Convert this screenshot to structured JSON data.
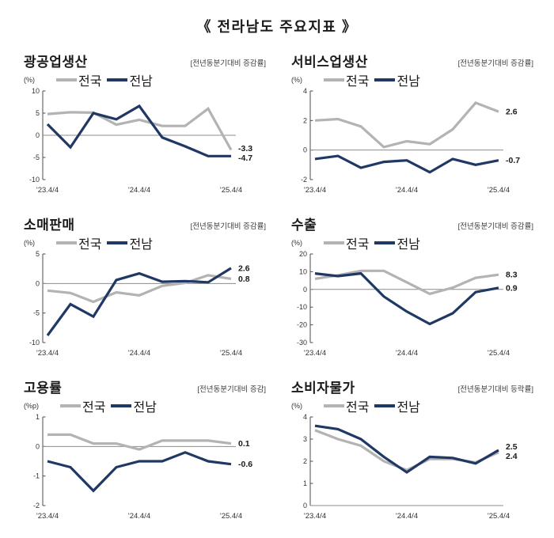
{
  "page_title": "《  전라남도 주요지표  》",
  "colors": {
    "national": "#b3b3b3",
    "jeonnam": "#1f3864",
    "axis": "#4d4d4d",
    "zero_line": "#8c8c8c",
    "tick_label": "#333333",
    "end_label": "#1a1a1a"
  },
  "legend": {
    "national_label": "전국",
    "jeonnam_label": "전남"
  },
  "chart_data": [
    {
      "type": "line",
      "title": "광공업생산",
      "subtitle": "[전년동분기대비  증감률]",
      "unit": "(%)",
      "points": 9,
      "x_tick_labels": [
        "'23.4/4",
        "'24.4/4",
        "'25.4/4"
      ],
      "x_tick_indices": [
        0,
        4,
        8
      ],
      "ylim": [
        -10,
        10
      ],
      "yticks": [
        10,
        5,
        0,
        -5,
        -10
      ],
      "series": [
        {
          "name": "전국",
          "color_key": "national",
          "values": [
            4.8,
            5.2,
            5.1,
            2.4,
            3.5,
            2.1,
            2.1,
            6.0,
            -3.3
          ],
          "end_label": "-3.3"
        },
        {
          "name": "전남",
          "color_key": "jeonnam",
          "values": [
            2.5,
            -2.7,
            5.0,
            3.6,
            6.6,
            -0.5,
            -2.5,
            -4.7,
            -4.7
          ],
          "end_label": "-4.7"
        }
      ]
    },
    {
      "type": "line",
      "title": "서비스업생산",
      "subtitle": "[전년동분기대비  증감률]",
      "unit": "(%)",
      "points": 9,
      "x_tick_labels": [
        "'23.4/4",
        "'24.4/4",
        "'25.4/4"
      ],
      "x_tick_indices": [
        0,
        4,
        8
      ],
      "ylim": [
        -2,
        4
      ],
      "yticks": [
        4,
        2,
        0,
        -2
      ],
      "series": [
        {
          "name": "전국",
          "color_key": "national",
          "values": [
            2.0,
            2.1,
            1.6,
            0.2,
            0.6,
            0.4,
            1.4,
            3.2,
            2.6
          ],
          "end_label": "2.6"
        },
        {
          "name": "전남",
          "color_key": "jeonnam",
          "values": [
            -0.6,
            -0.4,
            -1.2,
            -0.8,
            -0.7,
            -1.5,
            -0.6,
            -1.0,
            -0.7
          ],
          "end_label": "-0.7"
        }
      ]
    },
    {
      "type": "line",
      "title": "소매판매",
      "subtitle": "[전년동분기대비  증감률]",
      "unit": "(%)",
      "points": 9,
      "x_tick_labels": [
        "'23.4/4",
        "'24.4/4",
        "'25.4/4"
      ],
      "x_tick_indices": [
        0,
        4,
        8
      ],
      "ylim": [
        -10,
        5
      ],
      "yticks": [
        5,
        0,
        -5,
        -10
      ],
      "series": [
        {
          "name": "전국",
          "color_key": "national",
          "values": [
            -1.2,
            -1.6,
            -3.1,
            -1.5,
            -2.0,
            -0.4,
            0.1,
            1.4,
            0.8
          ],
          "end_label": "0.8"
        },
        {
          "name": "전남",
          "color_key": "jeonnam",
          "values": [
            -8.8,
            -3.5,
            -5.6,
            0.6,
            1.7,
            0.3,
            0.4,
            0.2,
            2.6
          ],
          "end_label": "2.6"
        }
      ]
    },
    {
      "type": "line",
      "title": "수출",
      "subtitle": "[전년동분기대비  증감률]",
      "unit": "(%)",
      "points": 9,
      "x_tick_labels": [
        "'23.4/4",
        "'24.4/4",
        "'25.4/4"
      ],
      "x_tick_indices": [
        0,
        4,
        8
      ],
      "ylim": [
        -30,
        20
      ],
      "yticks": [
        20,
        10,
        0,
        -10,
        -20,
        -30
      ],
      "series": [
        {
          "name": "전국",
          "color_key": "national",
          "values": [
            6.0,
            8.0,
            10.5,
            10.5,
            4.0,
            -2.5,
            1.0,
            6.5,
            8.3
          ],
          "end_label": "8.3"
        },
        {
          "name": "전남",
          "color_key": "jeonnam",
          "values": [
            9.0,
            7.5,
            9.0,
            -4.0,
            -12.5,
            -19.5,
            -13.5,
            -1.5,
            0.9
          ],
          "end_label": "0.9"
        }
      ]
    },
    {
      "type": "line",
      "title": "고용률",
      "subtitle": "[전년동분기대비  증감]",
      "unit": "(%p)",
      "points": 9,
      "x_tick_labels": [
        "'23.4/4",
        "'24.4/4",
        "'25.4/4"
      ],
      "x_tick_indices": [
        0,
        4,
        8
      ],
      "ylim": [
        -2,
        1
      ],
      "yticks": [
        1,
        0,
        -1,
        -2
      ],
      "series": [
        {
          "name": "전국",
          "color_key": "national",
          "values": [
            0.4,
            0.4,
            0.1,
            0.1,
            -0.1,
            0.2,
            0.2,
            0.2,
            0.1
          ],
          "end_label": "0.1"
        },
        {
          "name": "전남",
          "color_key": "jeonnam",
          "values": [
            -0.5,
            -0.7,
            -1.5,
            -0.7,
            -0.5,
            -0.5,
            -0.2,
            -0.5,
            -0.6
          ],
          "end_label": "-0.6"
        }
      ]
    },
    {
      "type": "line",
      "title": "소비자물가",
      "subtitle": "[전년동분기대비  등락률]",
      "unit": "(%)",
      "points": 9,
      "x_tick_labels": [
        "'23.4/4",
        "'24.4/4",
        "'25.4/4"
      ],
      "x_tick_indices": [
        0,
        4,
        8
      ],
      "ylim": [
        0,
        4
      ],
      "yticks": [
        4,
        3,
        2,
        1,
        0
      ],
      "series": [
        {
          "name": "전국",
          "color_key": "national",
          "values": [
            3.4,
            3.0,
            2.7,
            2.0,
            1.6,
            2.1,
            2.1,
            1.95,
            2.4
          ],
          "end_label": "2.4"
        },
        {
          "name": "전남",
          "color_key": "jeonnam",
          "values": [
            3.6,
            3.45,
            3.0,
            2.2,
            1.5,
            2.2,
            2.15,
            1.9,
            2.5
          ],
          "end_label": "2.5"
        }
      ]
    }
  ]
}
